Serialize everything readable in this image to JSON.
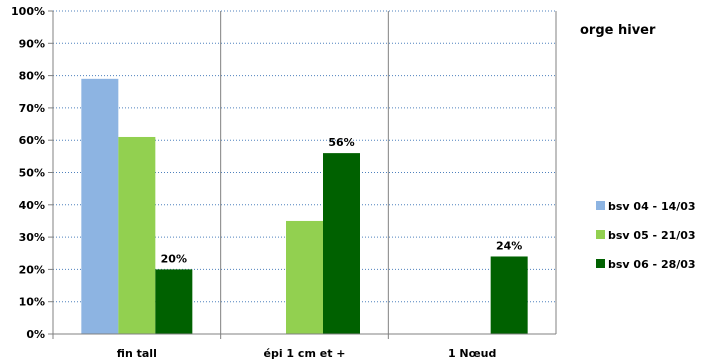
{
  "chart_data": {
    "type": "bar",
    "title": "orge hiver",
    "categories": [
      "fin tall",
      "épi 1 cm et +",
      "1 Nœud"
    ],
    "ylim": [
      0,
      100
    ],
    "yticks": [
      0,
      10,
      20,
      30,
      40,
      50,
      60,
      70,
      80,
      90,
      100
    ],
    "ytick_suffix": "%",
    "grid": true,
    "legend_position": "right",
    "series": [
      {
        "name": "bsv 04 - 14/03",
        "color": "#8db4e2",
        "values": [
          79,
          0,
          0
        ],
        "labels": [
          "",
          "",
          ""
        ]
      },
      {
        "name": "bsv 05 - 21/03",
        "color": "#92d050",
        "values": [
          61,
          35,
          0
        ],
        "labels": [
          "",
          "",
          ""
        ]
      },
      {
        "name": "bsv 06 - 28/03",
        "color": "#006100",
        "values": [
          20,
          56,
          24
        ],
        "labels": [
          "20%",
          "56%",
          "24%"
        ]
      }
    ]
  }
}
